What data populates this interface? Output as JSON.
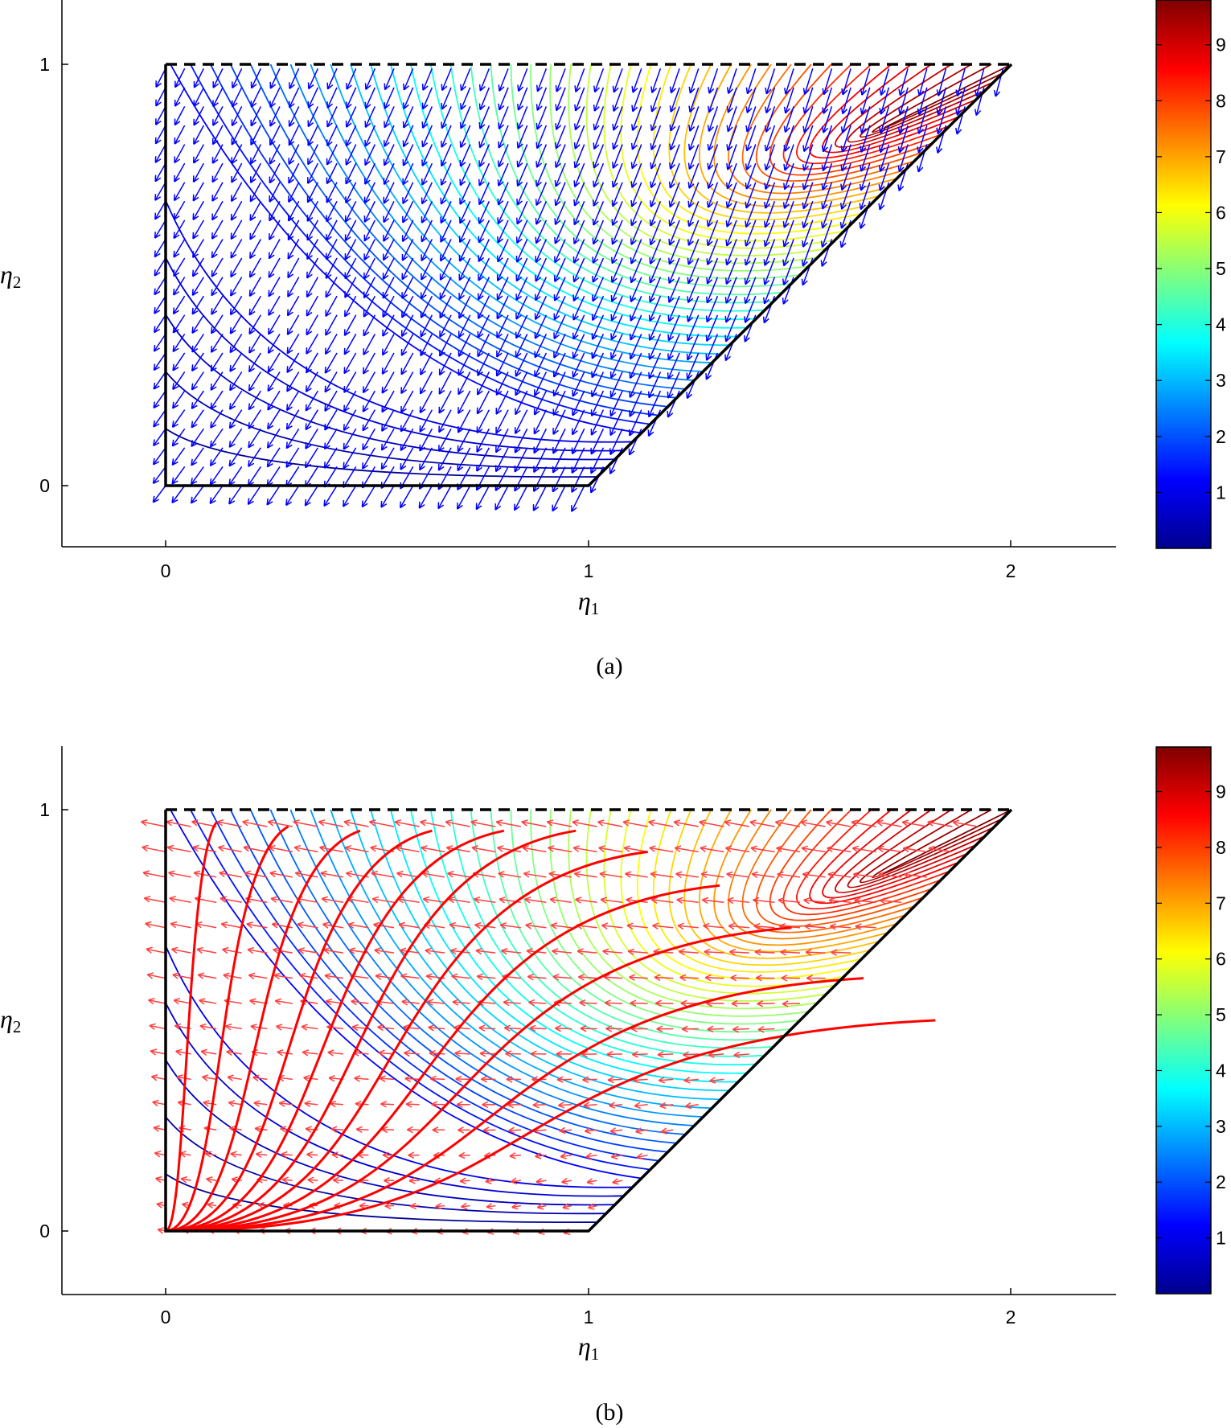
{
  "chart_data": [
    {
      "type": "quiver",
      "panel_label": "(a)",
      "xlabel": "η1",
      "ylabel": "η2",
      "xticks": [
        0,
        1,
        2
      ],
      "yticks": [
        0,
        1
      ],
      "xlim": [
        -0.25,
        2.25
      ],
      "ylim": [
        -0.15,
        1.15
      ],
      "domain_vertices": [
        [
          0,
          0
        ],
        [
          1,
          0
        ],
        [
          2,
          1
        ],
        [
          0,
          1
        ]
      ],
      "dashed_edge": [
        [
          0,
          1
        ],
        [
          2,
          1
        ]
      ],
      "contour_levels": 48,
      "vector_color": "#0000ff",
      "colorbar": {
        "ticks": [
          1,
          2,
          3,
          4,
          5,
          6,
          7,
          8,
          9
        ],
        "range": [
          0,
          9.8
        ],
        "colormap": "jet"
      },
      "grid": false
    },
    {
      "type": "quiver",
      "panel_label": "(b)",
      "xlabel": "η1",
      "ylabel": "η2",
      "xticks": [
        0,
        1,
        2
      ],
      "yticks": [
        0,
        1
      ],
      "xlim": [
        -0.25,
        2.25
      ],
      "ylim": [
        -0.15,
        1.15
      ],
      "domain_vertices": [
        [
          0,
          0
        ],
        [
          1,
          0
        ],
        [
          2,
          1
        ],
        [
          0,
          1
        ]
      ],
      "dashed_edge": [
        [
          0,
          1
        ],
        [
          2,
          1
        ]
      ],
      "contour_levels": 48,
      "vector_color": "#ff4040",
      "streamline_color": "#ff0000",
      "streamline_starts_y": [
        0.97,
        0.96,
        0.95,
        0.95,
        0.95,
        0.95,
        0.9,
        0.82,
        0.72,
        0.6,
        0.5
      ],
      "colorbar": {
        "ticks": [
          1,
          2,
          3,
          4,
          5,
          6,
          7,
          8,
          9
        ],
        "range": [
          0,
          9.8
        ],
        "colormap": "jet"
      },
      "grid": false
    }
  ]
}
